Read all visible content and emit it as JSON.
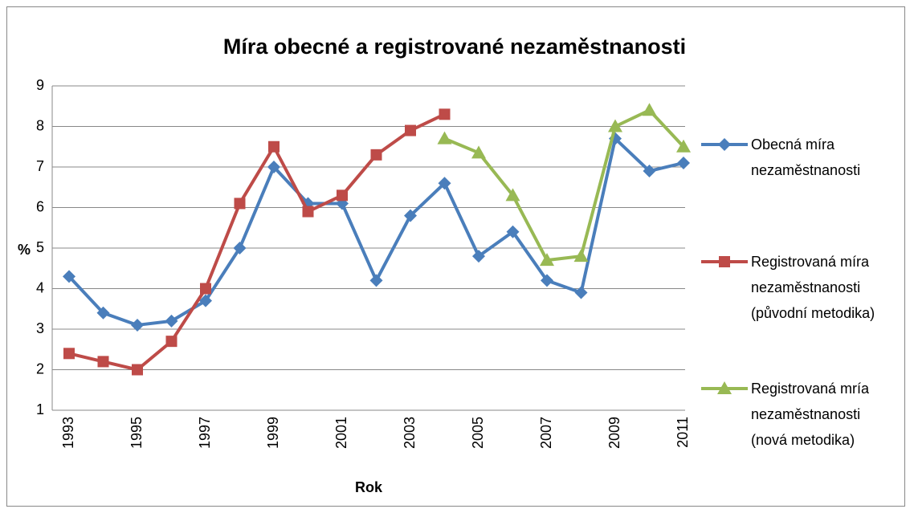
{
  "chart_data": {
    "type": "line",
    "title": "Míra obecné a registrované nezaměstnanosti",
    "x_label": "Rok",
    "y_label": "%",
    "categories": [
      "1993",
      null,
      "1995",
      null,
      "1997",
      null,
      "1999",
      null,
      "2001",
      null,
      "2003",
      null,
      "2005",
      null,
      "2007",
      null,
      "2009",
      null,
      "2011"
    ],
    "series": [
      {
        "name": "Obecná míra nezaměstnanosti",
        "color": "#4a7ebb",
        "marker": "diamond",
        "values": [
          4.3,
          3.4,
          3.1,
          3.2,
          3.7,
          5.0,
          7.0,
          6.1,
          6.1,
          4.2,
          5.8,
          6.6,
          4.8,
          5.4,
          4.2,
          3.9,
          7.7,
          6.9,
          7.1
        ]
      },
      {
        "name": "Registrovaná míra nezaměstnanosti (původní metodika)",
        "color": "#be4b48",
        "marker": "square",
        "values": [
          2.4,
          2.2,
          2.0,
          2.7,
          4.0,
          6.1,
          7.5,
          5.9,
          6.3,
          7.3,
          7.9,
          8.3,
          null,
          null,
          null,
          null,
          null,
          null,
          null
        ]
      },
      {
        "name": "Registrovaná mría nezaměstnanosti (nová metodika)",
        "color": "#98b954",
        "marker": "triangle",
        "values": [
          null,
          null,
          null,
          null,
          null,
          null,
          null,
          null,
          null,
          null,
          null,
          7.7,
          7.35,
          6.3,
          4.7,
          4.8,
          8.0,
          8.4,
          7.5
        ]
      }
    ],
    "ylim": [
      1,
      9
    ],
    "yticks": [
      1,
      2,
      3,
      4,
      5,
      6,
      7,
      8,
      9
    ],
    "grid": true,
    "legend": "right"
  }
}
